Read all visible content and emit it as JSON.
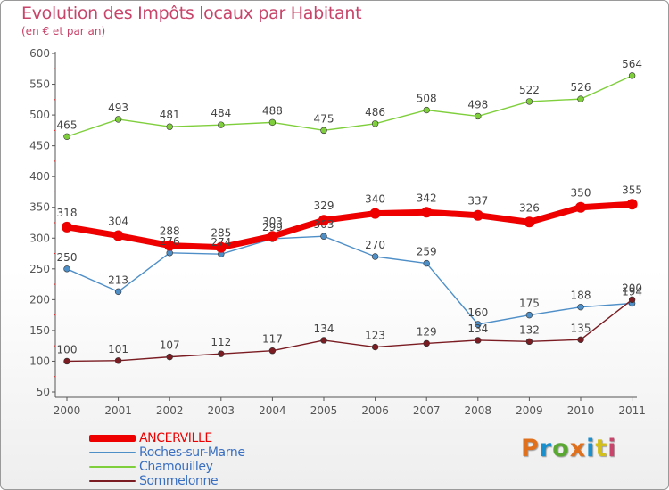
{
  "header": {
    "title": "Evolution des Impôts locaux par Habitant",
    "subtitle": "(en € et par an)"
  },
  "logo": {
    "text": "Proxiti",
    "colors": [
      "#e0701c",
      "#1a8fcd",
      "#5aa832",
      "#e0701c",
      "#1a8fcd",
      "#d4c01a",
      "#c8446a"
    ]
  },
  "chart_data": {
    "type": "line",
    "x": [
      "2000",
      "2001",
      "2002",
      "2003",
      "2004",
      "2005",
      "2006",
      "2007",
      "2008",
      "2009",
      "2010",
      "2011"
    ],
    "ylim": [
      50,
      600
    ],
    "yticks": [
      50,
      100,
      150,
      200,
      250,
      300,
      350,
      400,
      450,
      500,
      550,
      600
    ],
    "grid": false,
    "legend_position": "bottom-left",
    "series": [
      {
        "name": "ANCERVILLE",
        "color": "#ee0000",
        "values": [
          318,
          304,
          288,
          285,
          303,
          329,
          340,
          342,
          337,
          326,
          350,
          355
        ],
        "labels": [
          "318",
          "304",
          "288",
          "285",
          "303",
          "329",
          "340",
          "342",
          "337",
          "326",
          "350",
          "355"
        ]
      },
      {
        "name": "Roches-sur-Marne",
        "color": "#4f8fc8",
        "values": [
          250,
          213,
          276,
          274,
          299,
          303,
          270,
          259,
          160,
          175,
          188,
          194
        ],
        "labels": [
          "250",
          "213",
          "276",
          "274",
          "299",
          "303",
          "270",
          "259",
          "160",
          "175",
          "188",
          "194"
        ]
      },
      {
        "name": "Chamouilley",
        "color": "#7fcf3c",
        "values": [
          465,
          493,
          481,
          484,
          488,
          475,
          486,
          508,
          498,
          522,
          526,
          564
        ],
        "labels": [
          "465",
          "493",
          "481",
          "484",
          "488",
          "475",
          "486",
          "508",
          "498",
          "522",
          "526",
          "564"
        ]
      },
      {
        "name": "Sommelonne",
        "color": "#7a1c22",
        "values": [
          100,
          101,
          107,
          112,
          117,
          134,
          123,
          129,
          134,
          132,
          135,
          200
        ],
        "labels": [
          "100",
          "101",
          "107",
          "112",
          "117",
          "134",
          "123",
          "129",
          "134",
          "132",
          "135",
          "200"
        ]
      }
    ]
  }
}
